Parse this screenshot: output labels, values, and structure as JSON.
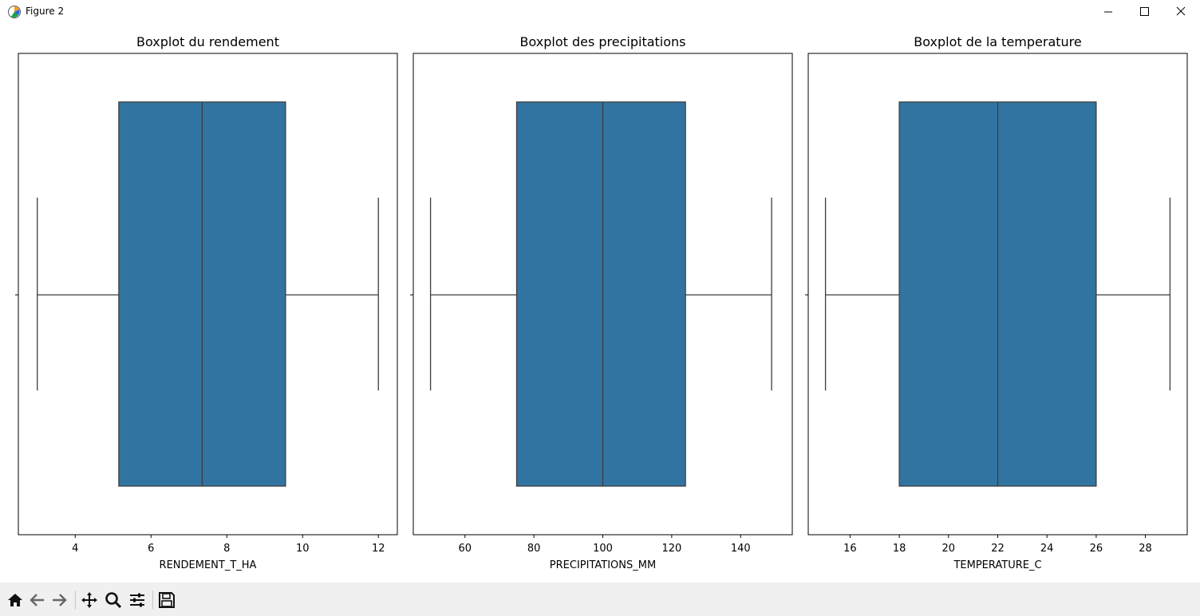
{
  "window": {
    "title": "Figure 2"
  },
  "colors": {
    "box_fill": "#3274a1",
    "line": "#3d3d3d",
    "frame": "#000000"
  },
  "toolbar": {
    "items": [
      {
        "name": "home-icon"
      },
      {
        "name": "back-icon"
      },
      {
        "name": "forward-icon"
      },
      {
        "name": "pan-icon"
      },
      {
        "name": "zoom-icon"
      },
      {
        "name": "configure-icon"
      },
      {
        "name": "save-icon"
      }
    ]
  },
  "chart_data": [
    {
      "type": "boxplot",
      "title": "Boxplot du rendement",
      "xlabel": "RENDEMENT_T_HA",
      "ylabel": "",
      "xlim": [
        2.5,
        12.5
      ],
      "xticks": [
        4,
        6,
        8,
        10,
        12
      ],
      "stats": {
        "whisker_low": 3.0,
        "q1": 5.15,
        "median": 7.35,
        "q3": 9.55,
        "whisker_high": 12.0
      }
    },
    {
      "type": "boxplot",
      "title": "Boxplot des precipitations",
      "xlabel": "PRECIPITATIONS_MM",
      "ylabel": "",
      "xlim": [
        45,
        155
      ],
      "xticks": [
        60,
        80,
        100,
        120,
        140
      ],
      "stats": {
        "whisker_low": 50,
        "q1": 75,
        "median": 100,
        "q3": 124,
        "whisker_high": 149
      }
    },
    {
      "type": "boxplot",
      "title": "Boxplot de la temperature",
      "xlabel": "TEMPERATURE_C",
      "ylabel": "",
      "xlim": [
        14.3,
        29.7
      ],
      "xticks": [
        16,
        18,
        20,
        22,
        24,
        26,
        28
      ],
      "stats": {
        "whisker_low": 15,
        "q1": 18,
        "median": 22,
        "q3": 26,
        "whisker_high": 29
      }
    }
  ]
}
